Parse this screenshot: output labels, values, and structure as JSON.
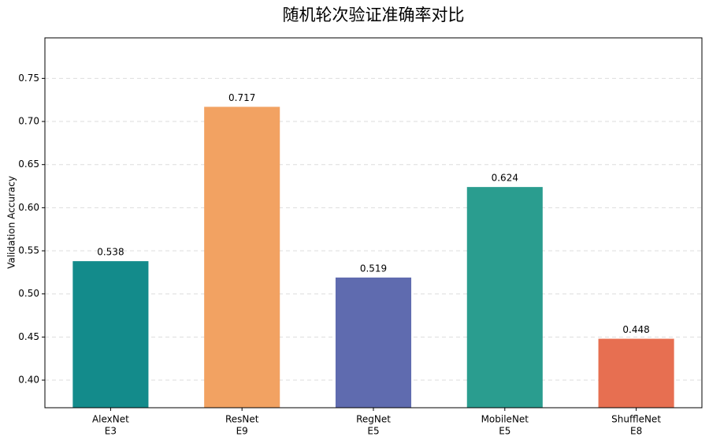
{
  "chart_data": {
    "type": "bar",
    "title": "随机轮次验证准确率对比",
    "y_label": "Validation Accuracy",
    "categories": [
      [
        "AlexNet",
        "E3"
      ],
      [
        "ResNet",
        "E9"
      ],
      [
        "RegNet",
        "E5"
      ],
      [
        "MobileNet",
        "E5"
      ],
      [
        "ShuffleNet",
        "E8"
      ]
    ],
    "values": [
      0.538,
      0.717,
      0.519,
      0.624,
      0.448
    ],
    "colors": [
      "#138b8b",
      "#f2a262",
      "#5f6baf",
      "#2a9d8f",
      "#e76f51"
    ],
    "ylim": [
      0.368,
      0.797
    ],
    "yticks": [
      {
        "value": 0.4,
        "label": "0.40"
      },
      0.45,
      {
        "value": 0.5,
        "label": "0.50"
      },
      0.55,
      {
        "value": 0.6,
        "label": "0.60"
      },
      0.65,
      {
        "value": 0.7,
        "label": "0.70"
      },
      0.75
    ],
    "grid": true
  }
}
